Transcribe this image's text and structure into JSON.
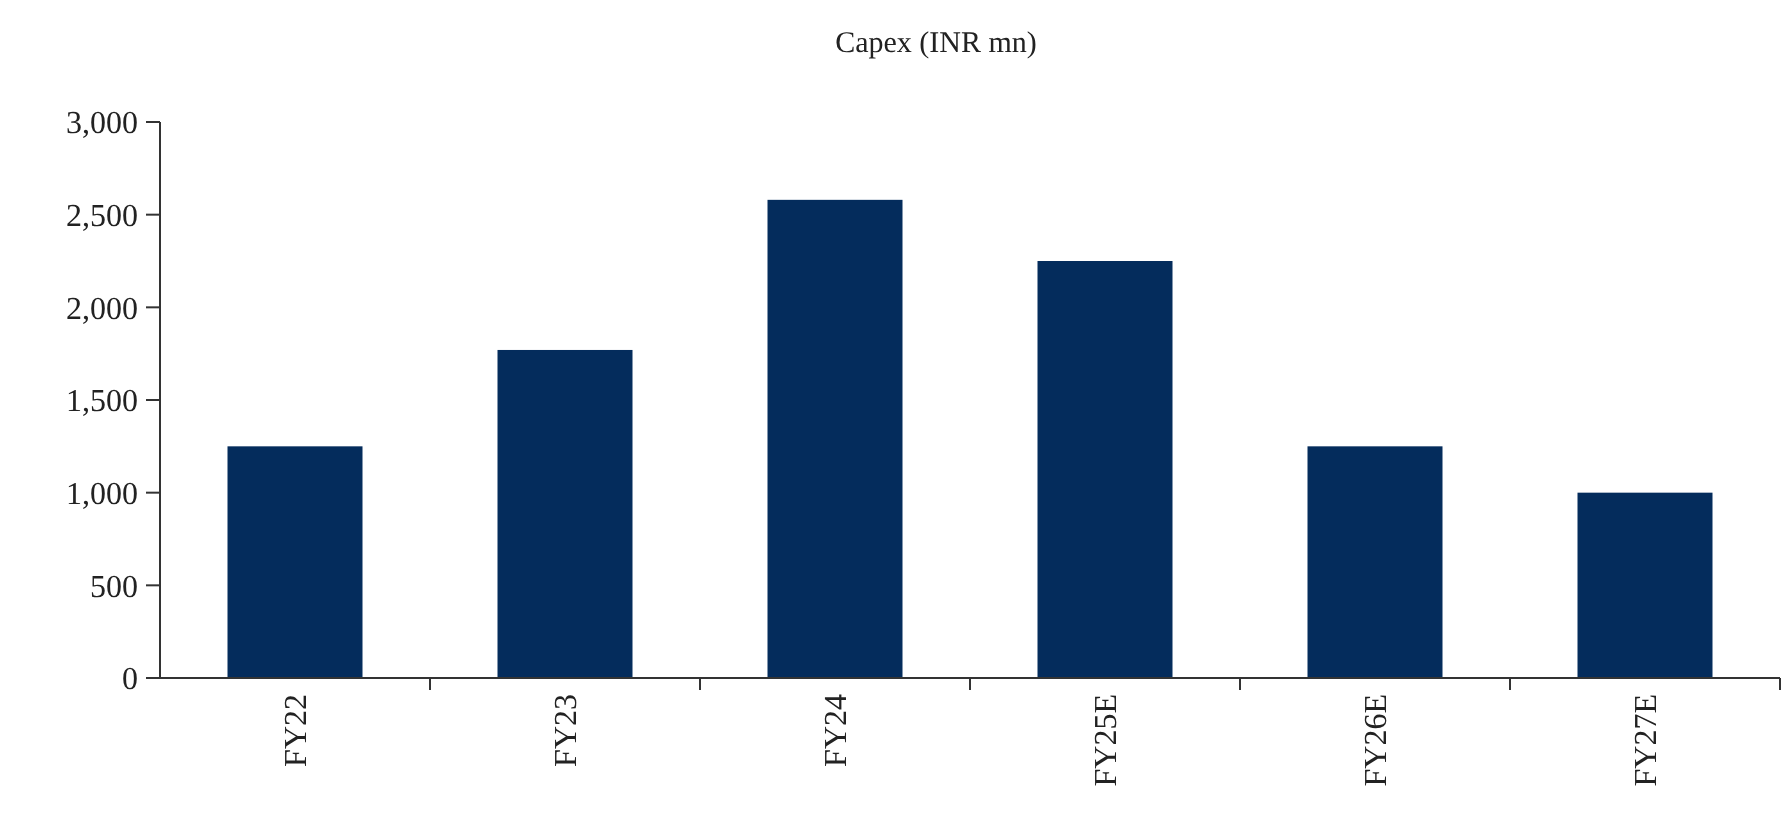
{
  "chart_data": {
    "type": "bar",
    "title": "Capex (INR mn)",
    "categories": [
      "FY22",
      "FY23",
      "FY24",
      "FY25E",
      "FY26E",
      "FY27E"
    ],
    "values": [
      1250,
      1770,
      2580,
      2250,
      1250,
      1000
    ],
    "color": "#042c5c",
    "ylim": [
      0,
      3000
    ],
    "yticks": [
      0,
      {
        "value": 500,
        "label": "500"
      },
      {
        "value": 1000,
        "label": "1,000"
      },
      {
        "value": 1500,
        "label": "1,500"
      },
      {
        "value": 2000,
        "label": "2,000"
      },
      {
        "value": 2500,
        "label": "2,500"
      },
      {
        "value": 3000,
        "label": "3,000"
      }
    ],
    "grid": false
  }
}
